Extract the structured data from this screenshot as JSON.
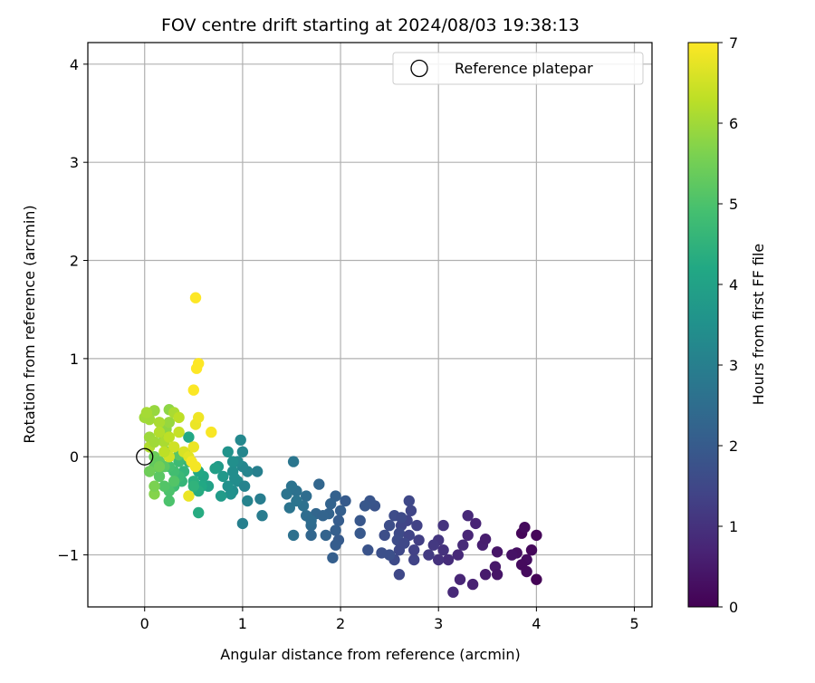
{
  "chart_data": {
    "type": "scatter",
    "title": "FOV centre drift starting at 2024/08/03 19:38:13",
    "xlabel": "Angular distance from reference (arcmin)",
    "ylabel": "Rotation from reference (arcmin)",
    "xlim": [
      -0.58,
      5.18
    ],
    "ylim": [
      -1.53,
      4.22
    ],
    "x_ticks": [
      "0",
      "1",
      "2",
      "3",
      "4",
      "5"
    ],
    "y_ticks": [
      "−1",
      "0",
      "1",
      "2",
      "3",
      "4"
    ],
    "grid": true,
    "legend": {
      "label": "Reference platepar",
      "placement": "top-right"
    },
    "colorbar": {
      "label": "Hours from first FF file",
      "range": [
        0,
        7
      ],
      "ticks": [
        "0",
        "1",
        "2",
        "3",
        "4",
        "5",
        "6",
        "7"
      ],
      "colormap": "viridis"
    },
    "reference_point": {
      "x": 0,
      "y": 0
    },
    "points": [
      [
        3.85,
        -0.78,
        0.1
      ],
      [
        3.88,
        -0.72,
        0.2
      ],
      [
        4.0,
        -0.8,
        0.1
      ],
      [
        3.95,
        -0.95,
        0.15
      ],
      [
        3.8,
        -0.98,
        0.3
      ],
      [
        3.9,
        -1.05,
        0.25
      ],
      [
        3.85,
        -1.1,
        0.2
      ],
      [
        4.0,
        -1.25,
        0.05
      ],
      [
        3.9,
        -1.17,
        0.2
      ],
      [
        3.75,
        -1.0,
        0.35
      ],
      [
        3.6,
        -0.97,
        0.4
      ],
      [
        3.58,
        -1.12,
        0.45
      ],
      [
        3.6,
        -1.2,
        0.4
      ],
      [
        3.48,
        -1.2,
        0.5
      ],
      [
        3.45,
        -0.9,
        0.6
      ],
      [
        3.48,
        -0.84,
        0.55
      ],
      [
        3.38,
        -0.68,
        0.7
      ],
      [
        3.3,
        -0.6,
        0.8
      ],
      [
        3.3,
        -0.8,
        0.75
      ],
      [
        3.25,
        -0.9,
        0.85
      ],
      [
        3.2,
        -1.0,
        0.8
      ],
      [
        3.22,
        -1.25,
        0.75
      ],
      [
        3.35,
        -1.3,
        0.65
      ],
      [
        3.15,
        -1.38,
        0.8
      ],
      [
        3.1,
        -1.05,
        0.9
      ],
      [
        3.05,
        -0.95,
        1.0
      ],
      [
        3.0,
        -0.85,
        1.1
      ],
      [
        3.05,
        -0.7,
        1.05
      ],
      [
        3.0,
        -1.05,
        1.0
      ],
      [
        2.95,
        -0.9,
        1.15
      ],
      [
        2.9,
        -1.0,
        1.2
      ],
      [
        2.8,
        -0.85,
        1.3
      ],
      [
        2.75,
        -1.05,
        1.4
      ],
      [
        2.75,
        -0.95,
        1.35
      ],
      [
        2.78,
        -0.7,
        1.35
      ],
      [
        2.72,
        -0.55,
        1.45
      ],
      [
        2.7,
        -0.45,
        1.5
      ],
      [
        2.68,
        -0.65,
        1.4
      ],
      [
        2.62,
        -0.7,
        1.45
      ],
      [
        2.6,
        -0.78,
        1.55
      ],
      [
        2.58,
        -0.85,
        1.6
      ],
      [
        2.55,
        -0.6,
        1.6
      ],
      [
        2.5,
        -0.7,
        1.65
      ],
      [
        2.45,
        -0.8,
        1.65
      ],
      [
        2.6,
        -0.95,
        1.5
      ],
      [
        2.55,
        -1.05,
        1.55
      ],
      [
        2.6,
        -1.2,
        1.5
      ],
      [
        2.5,
        -1.0,
        1.7
      ],
      [
        2.42,
        -0.98,
        1.7
      ],
      [
        2.62,
        -0.62,
        1.55
      ],
      [
        2.7,
        -0.8,
        1.4
      ],
      [
        2.65,
        -0.88,
        1.5
      ],
      [
        2.35,
        -0.5,
        1.8
      ],
      [
        2.3,
        -0.45,
        1.85
      ],
      [
        2.25,
        -0.5,
        1.9
      ],
      [
        2.2,
        -0.65,
        1.9
      ],
      [
        2.28,
        -0.95,
        1.8
      ],
      [
        2.2,
        -0.78,
        1.95
      ],
      [
        2.05,
        -0.45,
        2.0
      ],
      [
        2.0,
        -0.55,
        2.1
      ],
      [
        1.95,
        -0.4,
        2.15
      ],
      [
        1.9,
        -0.48,
        2.2
      ],
      [
        1.98,
        -0.65,
        2.05
      ],
      [
        1.95,
        -0.75,
        2.1
      ],
      [
        1.98,
        -0.85,
        2.0
      ],
      [
        1.95,
        -0.9,
        2.05
      ],
      [
        1.92,
        -1.03,
        2.1
      ],
      [
        1.85,
        -0.8,
        2.2
      ],
      [
        1.88,
        -0.58,
        2.2
      ],
      [
        1.78,
        -0.28,
        2.3
      ],
      [
        1.75,
        -0.58,
        2.3
      ],
      [
        1.7,
        -0.7,
        2.4
      ],
      [
        1.7,
        -0.8,
        2.3
      ],
      [
        1.82,
        -0.6,
        2.25
      ],
      [
        1.65,
        -0.4,
        2.5
      ],
      [
        1.65,
        -0.6,
        2.5
      ],
      [
        1.62,
        -0.5,
        2.6
      ],
      [
        1.55,
        -0.35,
        2.6
      ],
      [
        1.5,
        -0.3,
        2.65
      ],
      [
        1.45,
        -0.38,
        2.7
      ],
      [
        1.48,
        -0.52,
        2.7
      ],
      [
        1.52,
        -0.05,
        2.75
      ],
      [
        1.55,
        -0.45,
        2.7
      ],
      [
        1.52,
        -0.8,
        2.6
      ],
      [
        1.7,
        -0.65,
        2.45
      ],
      [
        1.2,
        -0.6,
        2.9
      ],
      [
        1.18,
        -0.43,
        2.95
      ],
      [
        1.15,
        -0.15,
        3.0
      ],
      [
        1.05,
        -0.45,
        3.1
      ],
      [
        1.0,
        -0.68,
        3.0
      ],
      [
        1.05,
        -0.15,
        3.15
      ],
      [
        1.0,
        -0.1,
        3.2
      ],
      [
        1.0,
        0.05,
        3.2
      ],
      [
        0.98,
        0.17,
        3.25
      ],
      [
        0.95,
        -0.05,
        3.3
      ],
      [
        0.95,
        -0.25,
        3.35
      ],
      [
        0.9,
        -0.35,
        3.4
      ],
      [
        0.88,
        -0.38,
        3.5
      ],
      [
        0.85,
        -0.3,
        3.5
      ],
      [
        0.9,
        -0.15,
        3.4
      ],
      [
        0.9,
        -0.05,
        3.45
      ],
      [
        0.85,
        0.05,
        3.55
      ],
      [
        1.02,
        -0.3,
        3.1
      ],
      [
        0.92,
        -0.22,
        3.4
      ],
      [
        0.8,
        -0.2,
        3.7
      ],
      [
        0.78,
        -0.4,
        3.8
      ],
      [
        0.75,
        -0.1,
        3.75
      ],
      [
        0.72,
        -0.12,
        3.9
      ],
      [
        0.65,
        -0.3,
        4.0
      ],
      [
        0.6,
        -0.2,
        4.1
      ],
      [
        0.58,
        -0.3,
        4.2
      ],
      [
        0.55,
        -0.35,
        4.3
      ],
      [
        0.55,
        -0.57,
        4.3
      ],
      [
        0.55,
        -0.15,
        4.2
      ],
      [
        0.5,
        -0.25,
        4.4
      ],
      [
        0.5,
        -0.3,
        4.5
      ],
      [
        0.45,
        -0.05,
        4.5
      ],
      [
        0.45,
        0.2,
        4.2
      ],
      [
        0.4,
        -0.15,
        4.55
      ],
      [
        0.42,
        0.02,
        4.5
      ],
      [
        0.38,
        -0.25,
        4.6
      ],
      [
        0.35,
        -0.2,
        4.7
      ],
      [
        0.35,
        -0.05,
        4.75
      ],
      [
        0.3,
        -0.3,
        4.8
      ],
      [
        0.3,
        -0.15,
        4.85
      ],
      [
        0.25,
        -0.1,
        4.9
      ],
      [
        0.25,
        -0.45,
        5.0
      ],
      [
        0.25,
        -0.35,
        5.0
      ],
      [
        0.2,
        -0.3,
        5.1
      ],
      [
        0.15,
        -0.2,
        5.2
      ],
      [
        0.1,
        -0.1,
        5.3
      ],
      [
        0.1,
        0.0,
        5.4
      ],
      [
        0.05,
        -0.15,
        5.45
      ],
      [
        0.15,
        -0.05,
        5.3
      ],
      [
        0.2,
        -0.1,
        5.2
      ],
      [
        0.22,
        0.05,
        5.4
      ],
      [
        0.3,
        -0.25,
        5.1
      ],
      [
        0.35,
        0.02,
        5.15
      ],
      [
        0.1,
        -0.38,
        5.7
      ],
      [
        0.1,
        -0.3,
        5.6
      ],
      [
        0.15,
        -0.1,
        5.5
      ],
      [
        0.2,
        0.2,
        5.7
      ],
      [
        0.22,
        0.28,
        5.8
      ],
      [
        0.25,
        0.35,
        5.9
      ],
      [
        0.25,
        0.48,
        5.8
      ],
      [
        0.1,
        0.47,
        5.9
      ],
      [
        0.05,
        0.38,
        6.0
      ],
      [
        0.05,
        0.2,
        5.95
      ],
      [
        0.0,
        0.4,
        6.0
      ],
      [
        0.02,
        0.45,
        6.05
      ],
      [
        0.15,
        0.35,
        6.1
      ],
      [
        0.2,
        0.15,
        6.1
      ],
      [
        0.15,
        0.25,
        6.2
      ],
      [
        0.25,
        0.2,
        6.3
      ],
      [
        0.3,
        0.45,
        6.1
      ],
      [
        0.35,
        0.4,
        6.3
      ],
      [
        0.35,
        0.25,
        6.4
      ],
      [
        0.3,
        0.1,
        6.5
      ],
      [
        0.25,
        0.0,
        6.5
      ],
      [
        0.2,
        0.05,
        6.3
      ],
      [
        0.05,
        0.1,
        6.15
      ],
      [
        0.1,
        0.15,
        6.0
      ],
      [
        0.4,
        0.05,
        6.6
      ],
      [
        0.45,
        -0.4,
        6.8
      ],
      [
        0.45,
        0.0,
        6.7
      ],
      [
        0.5,
        0.1,
        6.8
      ],
      [
        0.52,
        -0.1,
        6.9
      ],
      [
        0.52,
        0.33,
        6.8
      ],
      [
        0.55,
        0.4,
        6.85
      ],
      [
        0.48,
        -0.05,
        6.9
      ],
      [
        0.68,
        0.25,
        6.95
      ],
      [
        0.5,
        0.68,
        6.98
      ],
      [
        0.53,
        0.9,
        7.0
      ],
      [
        0.55,
        0.95,
        7.0
      ],
      [
        0.52,
        1.62,
        7.0
      ]
    ]
  }
}
